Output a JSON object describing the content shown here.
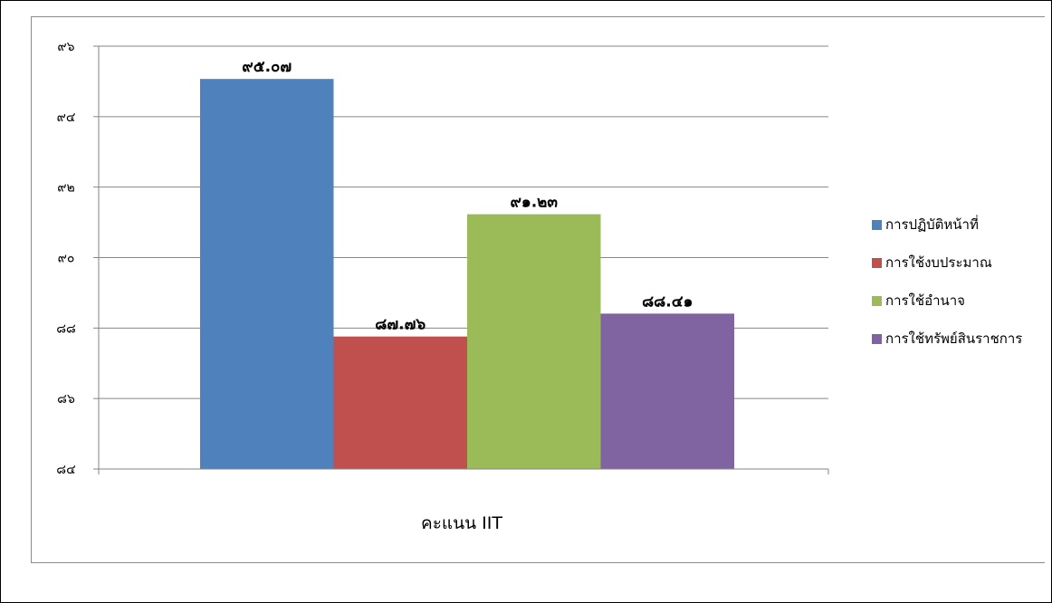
{
  "chart_data": {
    "type": "bar",
    "title": "",
    "xlabel": "",
    "ylabel": "",
    "category_label": "คะแนน IIT",
    "ylim": [
      84,
      96
    ],
    "yticks": [
      84,
      86,
      88,
      90,
      92,
      94,
      96
    ],
    "ytick_labels": [
      "๘๔",
      "๘๖",
      "๘๘",
      "๙๐",
      "๙๒",
      "๙๔",
      "๙๖"
    ],
    "grid": true,
    "legend_position": "right",
    "series": [
      {
        "name": "การปฏิบัติหน้าที่",
        "value": 95.07,
        "label": "๙๕.๐๗",
        "color": "#4f81bd"
      },
      {
        "name": "การใช้งบประมาณ",
        "value": 87.76,
        "label": "๘๗.๗๖",
        "color": "#c0504d"
      },
      {
        "name": "การใช้อำนาจ",
        "value": 91.23,
        "label": "๙๑.๒๓",
        "color": "#9bbb59"
      },
      {
        "name": "การใช้ทรัพย์สินราชการ",
        "value": 88.41,
        "label": "๘๘.๔๑",
        "color": "#8064a2"
      }
    ]
  }
}
